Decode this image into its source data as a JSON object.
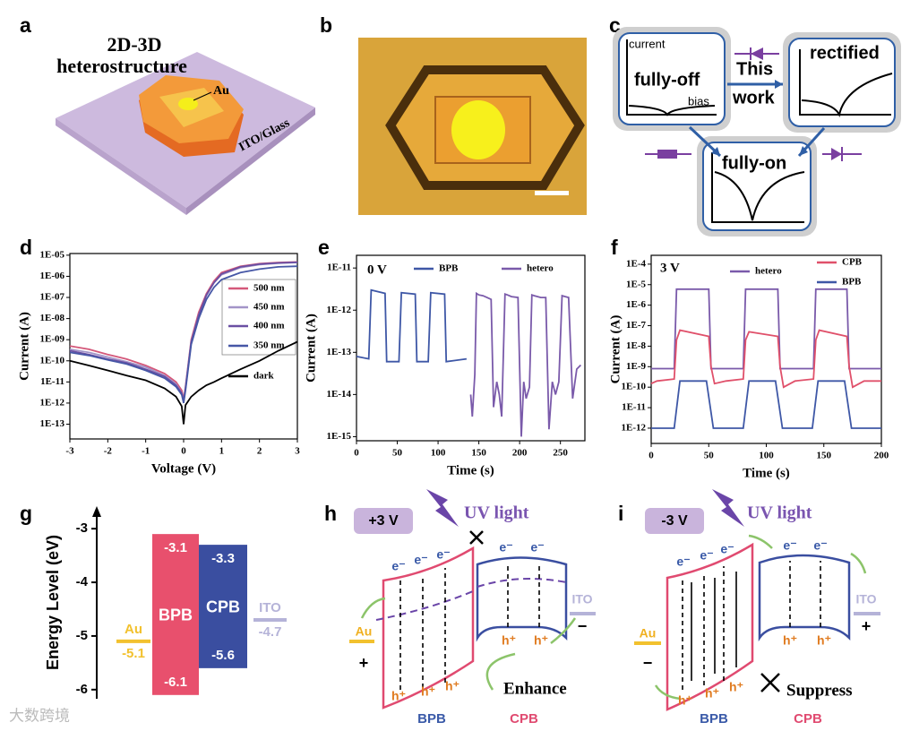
{
  "panels": {
    "a": {
      "label": "a",
      "title": [
        "2D-3D",
        "heterostructure"
      ],
      "electrode": "Au",
      "substrate": "ITO/Glass"
    },
    "b": {
      "label": "b"
    },
    "c": {
      "label": "c",
      "y_axis": "current",
      "x_axis": "bias",
      "state_1": "fully-off",
      "arrow_text": [
        "This",
        "work"
      ],
      "state_2": "rectified",
      "state_3": "fully-on"
    },
    "h": {
      "label": "h",
      "bias": "+3 V",
      "light": "UV light",
      "electrons": [
        "e⁻",
        "e⁻",
        "e⁻",
        "e⁻",
        "e⁻"
      ],
      "holes": [
        "h⁺",
        "h⁺",
        "h⁺",
        "h⁺",
        "h⁺"
      ],
      "left_contact": "Au",
      "left_sign": "+",
      "right_contact": "ITO",
      "right_sign": "−",
      "effect": "Enhance",
      "left_layer": "BPB",
      "right_layer": "CPB"
    },
    "i": {
      "label": "i",
      "bias": "-3 V",
      "light": "UV light",
      "electrons": [
        "e⁻",
        "e⁻",
        "e⁻",
        "e⁻",
        "e⁻"
      ],
      "holes": [
        "h⁺",
        "h⁺",
        "h⁺",
        "h⁺",
        "h⁺"
      ],
      "left_contact": "Au",
      "left_sign": "−",
      "right_contact": "ITO",
      "right_sign": "+",
      "effect": "Suppress",
      "left_layer": "BPB",
      "right_layer": "CPB"
    }
  },
  "chart_data": [
    {
      "type": "line",
      "panel_label": "d",
      "log_y": true,
      "x": [
        -3,
        -2.5,
        -2,
        -1.5,
        -1,
        -0.5,
        -0.2,
        -0.05,
        0,
        0.05,
        0.2,
        0.4,
        0.6,
        0.8,
        1,
        1.5,
        2,
        2.5,
        3
      ],
      "series": [
        {
          "name": "500 nm",
          "color": "#d4587a",
          "values": [
            5e-10,
            3.5e-10,
            2e-10,
            1.2e-10,
            6e-11,
            2.5e-11,
            1e-11,
            4e-12,
            1.5e-12,
            6e-12,
            1e-09,
            2e-08,
            1.5e-07,
            6e-07,
            1.5e-06,
            3e-06,
            4e-06,
            4.5e-06,
            4.8e-06
          ]
        },
        {
          "name": "450 nm",
          "color": "#a394c8",
          "values": [
            3.5e-10,
            2.5e-10,
            1.5e-10,
            9e-11,
            5e-11,
            2e-11,
            8e-12,
            3e-12,
            1.2e-12,
            5e-12,
            8e-10,
            1.5e-08,
            1.2e-07,
            5e-07,
            1.2e-06,
            2.6e-06,
            3.6e-06,
            4.2e-06,
            4.5e-06
          ]
        },
        {
          "name": "400 nm",
          "color": "#6a4fa3",
          "values": [
            3e-10,
            2e-10,
            1.2e-10,
            8e-11,
            4e-11,
            1.8e-11,
            7e-12,
            3e-12,
            1.2e-12,
            5e-12,
            8e-10,
            1.5e-08,
            1.3e-07,
            5e-07,
            1.3e-06,
            2.8e-06,
            3.8e-06,
            4.3e-06,
            4.6e-06
          ]
        },
        {
          "name": "350 nm",
          "color": "#4657a6",
          "values": [
            2.5e-10,
            1.8e-10,
            1.1e-10,
            7e-11,
            3.5e-11,
            1.5e-11,
            6e-12,
            2.5e-12,
            1e-12,
            4e-12,
            6e-10,
            1e-08,
            8e-08,
            3e-07,
            7e-07,
            1.5e-06,
            2.2e-06,
            2.8e-06,
            3e-06
          ]
        },
        {
          "name": "dark",
          "color": "#000000",
          "values": [
            1e-10,
            6e-11,
            3.5e-11,
            2e-11,
            1.2e-11,
            5e-12,
            2e-12,
            7e-13,
            1e-13,
            8e-13,
            2e-12,
            4e-12,
            7e-12,
            1e-11,
            1.5e-11,
            4e-11,
            1e-10,
            3e-10,
            8e-10
          ]
        }
      ],
      "xlim": [
        -3,
        3
      ],
      "ylim": [
        2e-14,
        1.2e-05
      ],
      "xticks": [
        -3,
        -2,
        -1,
        0,
        1,
        2,
        3
      ],
      "yticks": [
        {
          "value": 1e-05,
          "label": "1E-05"
        },
        {
          "value": 1e-06,
          "label": "1E-06"
        },
        {
          "value": 1e-07,
          "label": "1E-07"
        },
        {
          "value": 1e-08,
          "label": "1E-08"
        },
        {
          "value": 1e-09,
          "label": "1E-09"
        },
        {
          "value": 1e-10,
          "label": "1E-10"
        },
        {
          "value": 1e-11,
          "label": "1E-11"
        },
        {
          "value": 1e-12,
          "label": "1E-12"
        },
        {
          "value": 1e-13,
          "label": "1E-13"
        }
      ],
      "xlabel": "Voltage (V)",
      "ylabel": "Current (A)"
    },
    {
      "type": "line",
      "panel_label": "e",
      "log_y": true,
      "annotation": "0 V",
      "series": [
        {
          "name": "BPB",
          "color": "#3e57a6",
          "x": [
            0,
            15,
            18,
            35,
            37,
            52,
            55,
            72,
            74,
            88,
            91,
            108,
            110,
            135
          ],
          "values": [
            8e-14,
            7e-14,
            3e-12,
            2.5e-12,
            6e-14,
            6e-14,
            2.6e-12,
            2.4e-12,
            6e-14,
            6e-14,
            2.6e-12,
            2.4e-12,
            6e-14,
            7e-14
          ]
        },
        {
          "name": "hetero",
          "color": "#7a5aaa",
          "x": [
            140,
            142,
            145,
            147,
            150,
            155,
            160,
            165,
            168,
            172,
            175,
            178,
            182,
            185,
            190,
            198,
            202,
            205,
            208,
            212,
            215,
            218,
            222,
            226,
            232,
            236,
            240,
            244,
            248,
            252,
            256,
            260,
            265,
            270,
            275
          ],
          "values": [
            1e-14,
            3e-15,
            3e-14,
            2.5e-12,
            2.3e-12,
            2.2e-12,
            2e-12,
            1.8e-12,
            5e-15,
            2e-14,
            1e-14,
            3e-15,
            2.4e-12,
            2.3e-12,
            2.1e-12,
            2e-12,
            1e-15,
            2e-14,
            8e-15,
            1.5e-14,
            2.3e-12,
            2.2e-12,
            2.1e-12,
            2e-12,
            2e-12,
            1.5e-15,
            2e-14,
            1e-14,
            2e-14,
            2.2e-12,
            2.1e-12,
            2e-12,
            8e-15,
            4e-14,
            5e-14
          ]
        }
      ],
      "xlim": [
        0,
        280
      ],
      "ylim": [
        8e-16,
        2e-11
      ],
      "xticks": [
        0,
        50,
        100,
        150,
        200,
        250
      ],
      "yticks": [
        {
          "value": 1e-11,
          "label": "1E-11"
        },
        {
          "value": 1e-12,
          "label": "1E-12"
        },
        {
          "value": 1e-13,
          "label": "1E-13"
        },
        {
          "value": 1e-14,
          "label": "1E-14"
        },
        {
          "value": 1e-15,
          "label": "1E-15"
        }
      ],
      "xlabel": "Time (s)",
      "ylabel": "Current (A)"
    },
    {
      "type": "line",
      "panel_label": "f",
      "log_y": true,
      "annotation": "3 V",
      "series": [
        {
          "name": "hetero",
          "color": "#7a5aaa",
          "x": [
            0,
            20,
            22,
            50,
            52,
            80,
            82,
            110,
            112,
            141,
            143,
            170,
            172,
            200
          ],
          "values": [
            8e-10,
            8e-10,
            6e-06,
            6e-06,
            8e-10,
            8e-10,
            6e-06,
            6e-06,
            8e-10,
            8e-10,
            6e-06,
            6e-06,
            8e-10,
            8e-10
          ]
        },
        {
          "name": "CPB",
          "color": "#e0506a",
          "x": [
            0,
            5,
            20,
            22,
            25,
            50,
            52,
            55,
            65,
            80,
            82,
            85,
            110,
            112,
            115,
            125,
            141,
            143,
            146,
            170,
            172,
            175,
            185,
            200
          ],
          "values": [
            1.5e-10,
            2e-10,
            2.5e-10,
            2e-08,
            6e-08,
            3e-08,
            1e-09,
            1.5e-10,
            2e-10,
            2.5e-10,
            2e-08,
            5e-08,
            3e-08,
            1e-09,
            1e-10,
            2e-10,
            2.5e-10,
            2e-08,
            6e-08,
            3e-08,
            1e-09,
            1e-10,
            2e-10,
            2e-10
          ]
        },
        {
          "name": "BPB",
          "color": "#3e57a6",
          "x": [
            0,
            20,
            25,
            48,
            54,
            80,
            85,
            108,
            114,
            140,
            145,
            168,
            174,
            200
          ],
          "values": [
            1e-12,
            1e-12,
            2e-10,
            2e-10,
            1e-12,
            1e-12,
            2e-10,
            2e-10,
            1e-12,
            1e-12,
            2e-10,
            2e-10,
            1e-12,
            1e-12
          ]
        }
      ],
      "xlim": [
        0,
        200
      ],
      "ylim": [
        1.8e-13,
        0.00027
      ],
      "xticks": [
        0,
        50,
        100,
        150,
        200
      ],
      "yticks": [
        {
          "value": 0.0001,
          "label": "1E-4"
        },
        {
          "value": 1e-05,
          "label": "1E-5"
        },
        {
          "value": 1e-06,
          "label": "1E-6"
        },
        {
          "value": 1e-07,
          "label": "1E-7"
        },
        {
          "value": 1e-08,
          "label": "1E-8"
        },
        {
          "value": 1e-09,
          "label": "1E-9"
        },
        {
          "value": 1e-10,
          "label": "1E-10"
        },
        {
          "value": 1e-11,
          "label": "1E-11"
        },
        {
          "value": 1e-12,
          "label": "1E-12"
        }
      ],
      "xlabel": "Time (s)",
      "ylabel": "Current (A)"
    },
    {
      "type": "energy",
      "panel_label": "g",
      "ylabel": "Energy Level (eV)",
      "ylim": [
        -6.17,
        -2.58
      ],
      "yticks": [
        -3,
        -4,
        -5,
        -6
      ],
      "bands": [
        {
          "name": "BPB",
          "top": -3.1,
          "bottom": -6.1,
          "color": "#e8506d"
        },
        {
          "name": "CPB",
          "top": -3.3,
          "bottom": -5.6,
          "color": "#3a4ea0"
        }
      ],
      "levels": [
        {
          "name": "Au",
          "value": -5.1,
          "color": "#f2c12e"
        },
        {
          "name": "ITO",
          "value": -4.7,
          "color": "#b5b3d8"
        }
      ]
    }
  ],
  "watermark": "大数跨境"
}
